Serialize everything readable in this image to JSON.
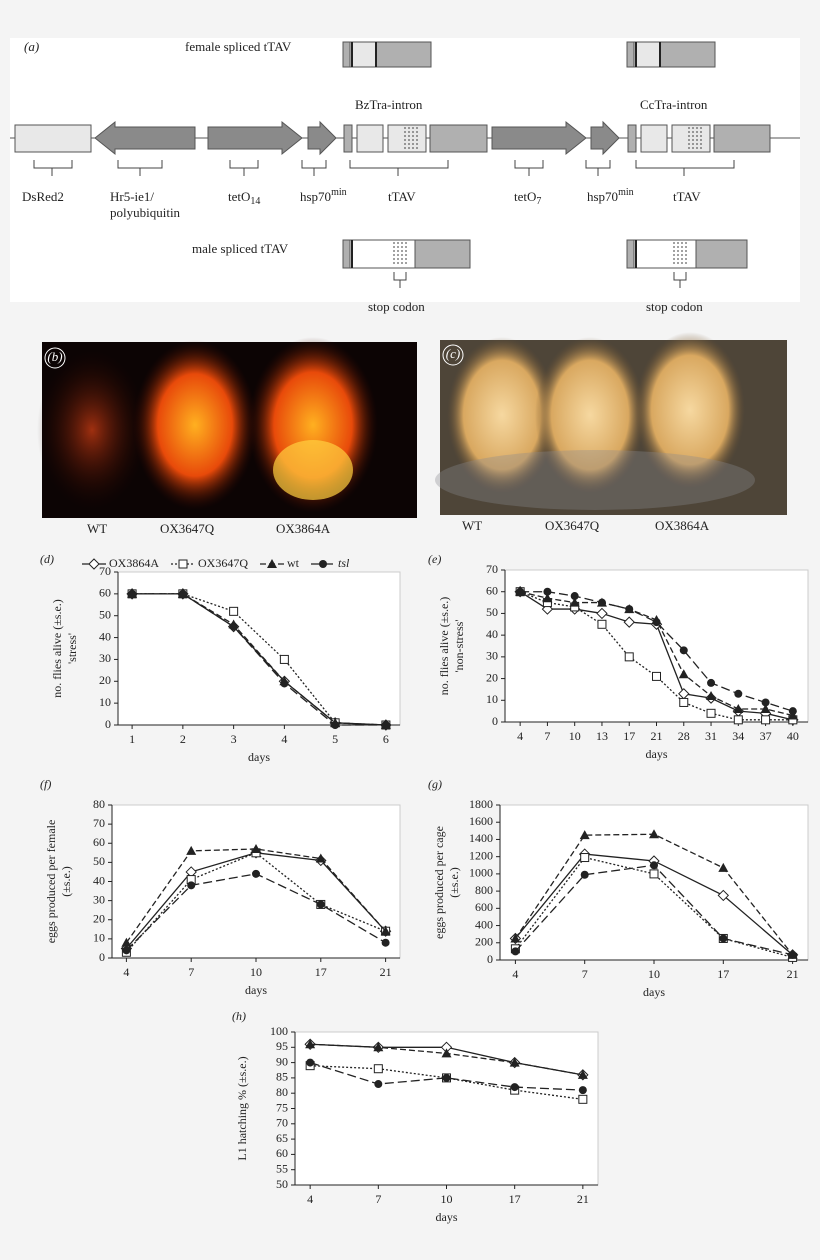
{
  "diagram": {
    "label": "(a)",
    "female_spliced": "female spliced tTAV",
    "male_spliced": "male spliced tTAV",
    "introns": [
      "BzTra-intron",
      "CcTra-intron"
    ],
    "parts": {
      "dsred": "DsRed2",
      "hr5": [
        "Hr5-ie1/",
        "polyubiquitin"
      ],
      "teto14": {
        "base": "tetO",
        "sub": "14"
      },
      "hsp1": {
        "base": "hsp70",
        "sup": "min"
      },
      "ttav1": "tTAV",
      "teto7": {
        "base": "tetO",
        "sub": "7"
      },
      "hsp2": {
        "base": "hsp70",
        "sup": "min"
      },
      "ttav2": "tTAV"
    },
    "stop_codon": [
      "stop codon",
      "stop codon"
    ]
  },
  "photos": [
    {
      "label": "(b)",
      "captions": [
        "WT",
        "OX3647Q",
        "OX3864A"
      ]
    },
    {
      "label": "(c)",
      "captions": [
        "WT",
        "OX3647Q",
        "OX3864A"
      ]
    }
  ],
  "chart_data": [
    {
      "type": "line",
      "panel": "(d)",
      "legend": "top",
      "categories": [
        "1",
        "2",
        "3",
        "4",
        "5",
        "6"
      ],
      "xlabel": "days",
      "ylabel": [
        "no. flies alive (±s.e.)",
        "'stress'"
      ],
      "ylim": [
        0,
        70
      ],
      "yticks": [
        0,
        10,
        20,
        30,
        40,
        50,
        60,
        70
      ],
      "series": [
        {
          "name": "OX3864A",
          "color": "#222222",
          "marker": "diamond",
          "dash": "solid",
          "values": [
            60,
            60,
            45,
            20,
            1,
            0
          ]
        },
        {
          "name": "OX3647Q",
          "color": "#222222",
          "marker": "square",
          "dash": "dotted",
          "values": [
            60,
            60,
            52,
            30,
            1,
            0
          ]
        },
        {
          "name": "wt",
          "color": "#222222",
          "marker": "triangle",
          "dash": "dashed",
          "values": [
            60,
            60,
            46,
            20,
            1,
            0
          ]
        },
        {
          "name": "tsl",
          "color": "#222222",
          "marker": "circle",
          "dash": "longdash",
          "italic": true,
          "values": [
            60,
            60,
            45,
            19,
            0,
            0
          ]
        }
      ]
    },
    {
      "type": "line",
      "panel": "(e)",
      "categories": [
        "4",
        "7",
        "10",
        "13",
        "17",
        "21",
        "28",
        "31",
        "34",
        "37",
        "40"
      ],
      "xlabel": "days",
      "ylabel": [
        "no. flies alive (±s.e.)",
        "'non-stress'"
      ],
      "ylim": [
        0,
        70
      ],
      "yticks": [
        0,
        10,
        20,
        30,
        40,
        50,
        60,
        70
      ],
      "series": [
        {
          "name": "OX3864A",
          "color": "#222222",
          "marker": "diamond",
          "dash": "solid",
          "values": [
            60,
            52,
            52,
            50,
            46,
            45,
            13,
            11,
            5,
            4,
            1
          ]
        },
        {
          "name": "OX3647Q",
          "color": "#222222",
          "marker": "square",
          "dash": "dotted",
          "values": [
            60,
            55,
            53,
            45,
            30,
            21,
            9,
            4,
            1,
            1,
            1
          ]
        },
        {
          "name": "wt",
          "color": "#222222",
          "marker": "triangle",
          "dash": "dashed",
          "values": [
            60,
            57,
            55,
            55,
            52,
            47,
            22,
            12,
            6,
            6,
            3
          ]
        },
        {
          "name": "tsl",
          "color": "#222222",
          "marker": "circle",
          "dash": "longdash",
          "values": [
            60,
            60,
            58,
            55,
            52,
            46,
            33,
            18,
            13,
            9,
            5
          ]
        }
      ]
    },
    {
      "type": "line",
      "panel": "(f)",
      "categories": [
        "4",
        "7",
        "10",
        "17",
        "21"
      ],
      "xlabel": "days",
      "ylabel": [
        "eggs produced per female",
        "(±s.e.)"
      ],
      "ylim": [
        0,
        80
      ],
      "yticks": [
        0,
        10,
        20,
        30,
        40,
        50,
        60,
        70,
        80
      ],
      "series": [
        {
          "name": "OX3864A",
          "color": "#222222",
          "marker": "diamond",
          "dash": "solid",
          "values": [
            5,
            45,
            55,
            51,
            14
          ]
        },
        {
          "name": "OX3647Q",
          "color": "#222222",
          "marker": "square",
          "dash": "dotted",
          "values": [
            3,
            41,
            55,
            28,
            14
          ]
        },
        {
          "name": "wt",
          "color": "#222222",
          "marker": "triangle",
          "dash": "dashed",
          "values": [
            8,
            56,
            57,
            52,
            14
          ]
        },
        {
          "name": "tsl",
          "color": "#222222",
          "marker": "circle",
          "dash": "longdash",
          "values": [
            4,
            38,
            44,
            28,
            8
          ]
        }
      ]
    },
    {
      "type": "line",
      "panel": "(g)",
      "categories": [
        "4",
        "7",
        "10",
        "17",
        "21"
      ],
      "xlabel": "days",
      "ylabel": [
        "eggs produced per cage",
        "(±s.e.)"
      ],
      "ylim": [
        0,
        1800
      ],
      "yticks": [
        0,
        200,
        400,
        600,
        800,
        1000,
        1200,
        1400,
        1600,
        1800
      ],
      "series": [
        {
          "name": "OX3864A",
          "color": "#222222",
          "marker": "diamond",
          "dash": "solid",
          "values": [
            250,
            1230,
            1150,
            750,
            60
          ]
        },
        {
          "name": "OX3647Q",
          "color": "#222222",
          "marker": "square",
          "dash": "dotted",
          "values": [
            130,
            1190,
            1000,
            250,
            30
          ]
        },
        {
          "name": "wt",
          "color": "#222222",
          "marker": "triangle",
          "dash": "dashed",
          "values": [
            250,
            1450,
            1460,
            1070,
            60
          ]
        },
        {
          "name": "tsl",
          "color": "#222222",
          "marker": "circle",
          "dash": "longdash",
          "values": [
            100,
            990,
            1100,
            250,
            60
          ]
        }
      ]
    },
    {
      "type": "line",
      "panel": "(h)",
      "categories": [
        "4",
        "7",
        "10",
        "17",
        "21"
      ],
      "xlabel": "days",
      "ylabel": [
        "L1 hatching % (±s.e.)"
      ],
      "ylim": [
        50,
        100
      ],
      "yticks": [
        50,
        55,
        60,
        65,
        70,
        75,
        80,
        85,
        90,
        95,
        100
      ],
      "series": [
        {
          "name": "OX3864A",
          "color": "#222222",
          "marker": "diamond",
          "dash": "solid",
          "values": [
            96,
            95,
            95,
            90,
            86
          ]
        },
        {
          "name": "OX3647Q",
          "color": "#222222",
          "marker": "square",
          "dash": "dotted",
          "values": [
            89,
            88,
            85,
            81,
            78
          ]
        },
        {
          "name": "wt",
          "color": "#222222",
          "marker": "triangle",
          "dash": "dashed",
          "values": [
            96,
            95,
            93,
            90,
            86
          ]
        },
        {
          "name": "tsl",
          "color": "#222222",
          "marker": "circle",
          "dash": "longdash",
          "values": [
            90,
            83,
            85,
            82,
            81
          ]
        }
      ]
    }
  ]
}
